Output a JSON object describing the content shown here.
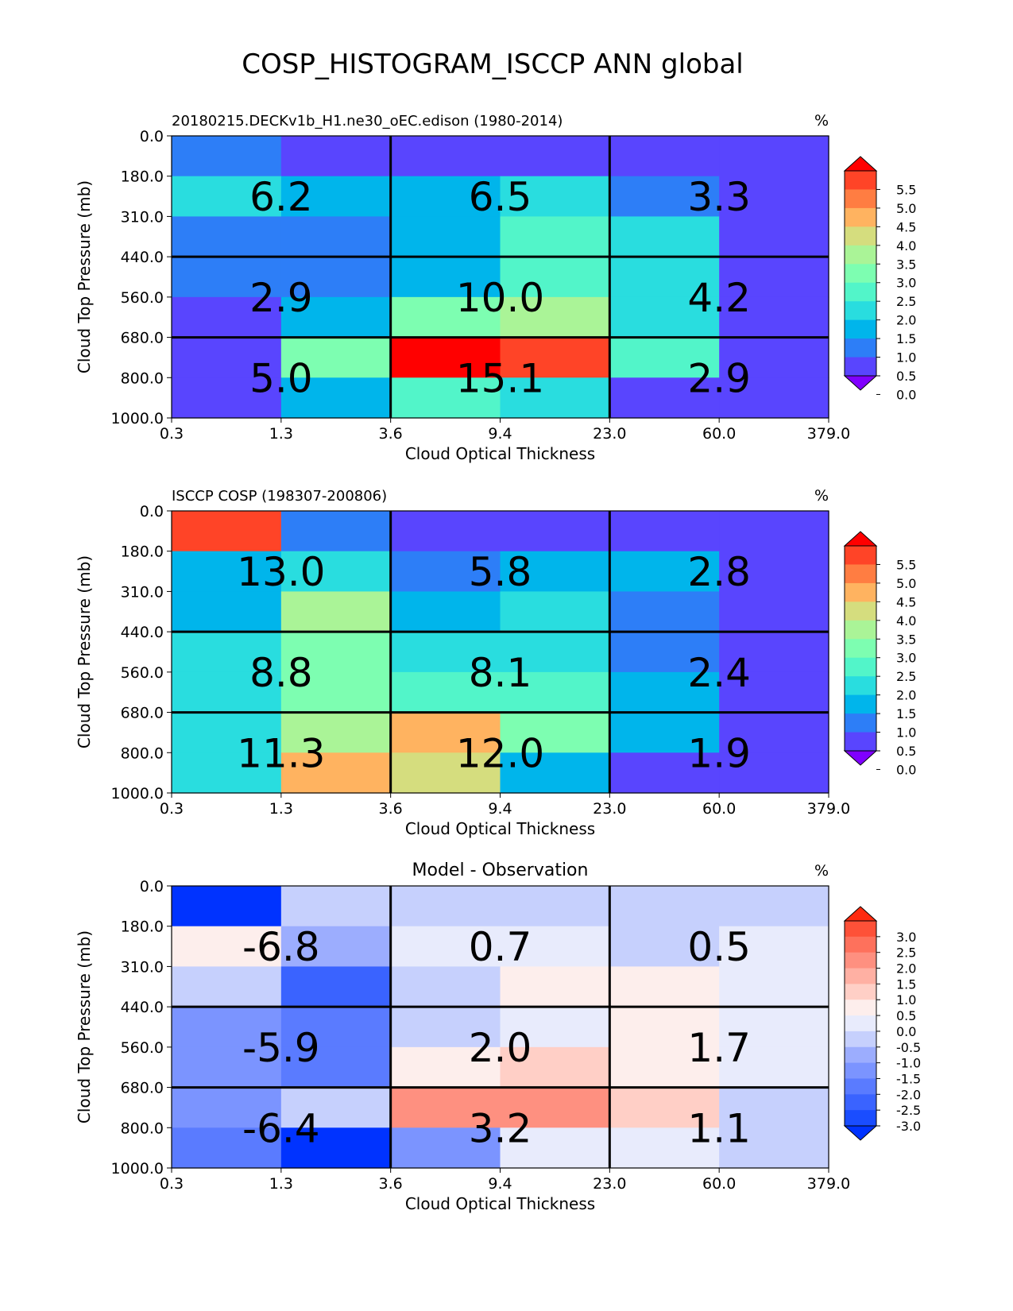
{
  "title": "COSP_HISTOGRAM_ISCCP ANN global",
  "colors": {
    "grid_line": "#000000",
    "background": "#ffffff",
    "seq_palette": [
      "#8000ff",
      "#5945fe",
      "#2d7ef7",
      "#00b5eb",
      "#29dddf",
      "#52f5c9",
      "#7dfeb1",
      "#aaf497",
      "#d5dd7e",
      "#ffb360",
      "#ff7d42",
      "#ff4427",
      "#ff0000"
    ],
    "div_palette": [
      "#0033ff",
      "#1a4dff",
      "#3a63ff",
      "#5a7bff",
      "#7b94ff",
      "#9cadfe",
      "#c6d0fd",
      "#e8ebfc",
      "#fdeeec",
      "#ffcfc6",
      "#ffb0a3",
      "#fe9080",
      "#fe715c",
      "#fe5138",
      "#ff2a10"
    ]
  },
  "chart_data": [
    {
      "type": "heatmap",
      "title": "20180215.DECKv1b_H1.ne30_oEC.edison (1980-2014)",
      "units": "%",
      "xlabel": "Cloud Optical Thickness",
      "ylabel": "Cloud Top Pressure (mb)",
      "x_ticks": [
        "0.3",
        "1.3",
        "3.6",
        "9.4",
        "23.0",
        "60.0",
        "379.0"
      ],
      "y_ticks": [
        "0.0",
        "180.0",
        "310.0",
        "440.0",
        "560.0",
        "680.0",
        "800.0",
        "1000.0"
      ],
      "colorbar_ticks": [
        "5.5",
        "5.0",
        "4.5",
        "4.0",
        "3.5",
        "3.0",
        "2.5",
        "2.0",
        "1.5",
        "1.0",
        "0.5",
        "0.0"
      ],
      "cell_values": [
        [
          0.7,
          0.3,
          0.3,
          0.3,
          0.3,
          0.3
        ],
        [
          1.8,
          1.3,
          1.3,
          1.8,
          0.7,
          0.3
        ],
        [
          0.7,
          0.7,
          1.3,
          2.3,
          1.8,
          0.3
        ],
        [
          0.7,
          0.7,
          1.3,
          2.3,
          1.8,
          0.3
        ],
        [
          0.3,
          1.3,
          2.8,
          3.2,
          1.8,
          0.3
        ],
        [
          0.3,
          2.8,
          5.6,
          5.2,
          2.3,
          0.3
        ],
        [
          0.3,
          1.3,
          2.3,
          1.8,
          0.3,
          0.3
        ]
      ],
      "group_labels": [
        [
          "6.2",
          "6.5",
          "3.3"
        ],
        [
          "2.9",
          "10.0",
          "4.2"
        ],
        [
          "5.0",
          "15.1",
          "2.9"
        ]
      ]
    },
    {
      "type": "heatmap",
      "title": "ISCCP COSP (198307-200806)",
      "units": "%",
      "xlabel": "Cloud Optical Thickness",
      "ylabel": "Cloud Top Pressure (mb)",
      "x_ticks": [
        "0.3",
        "1.3",
        "3.6",
        "9.4",
        "23.0",
        "60.0",
        "379.0"
      ],
      "y_ticks": [
        "0.0",
        "180.0",
        "310.0",
        "440.0",
        "560.0",
        "680.0",
        "800.0",
        "1000.0"
      ],
      "colorbar_ticks": [
        "5.5",
        "5.0",
        "4.5",
        "4.0",
        "3.5",
        "3.0",
        "2.5",
        "2.0",
        "1.5",
        "1.0",
        "0.5",
        "0.0"
      ],
      "cell_values": [
        [
          5.2,
          0.7,
          0.3,
          0.3,
          0.3,
          0.3
        ],
        [
          1.3,
          1.8,
          0.7,
          1.3,
          1.3,
          0.3
        ],
        [
          1.3,
          3.2,
          1.3,
          1.8,
          0.7,
          0.3
        ],
        [
          1.8,
          2.8,
          1.8,
          1.8,
          0.7,
          0.3
        ],
        [
          1.8,
          2.8,
          2.3,
          2.3,
          1.3,
          0.3
        ],
        [
          1.8,
          3.2,
          4.3,
          2.8,
          1.3,
          0.3
        ],
        [
          1.8,
          4.3,
          3.7,
          1.3,
          0.3,
          0.3
        ]
      ],
      "group_labels": [
        [
          "13.0",
          "5.8",
          "2.8"
        ],
        [
          "8.8",
          "8.1",
          "2.4"
        ],
        [
          "11.3",
          "12.0",
          "1.9"
        ]
      ]
    },
    {
      "type": "heatmap",
      "title": "Model - Observation",
      "units": "%",
      "xlabel": "Cloud Optical Thickness",
      "ylabel": "Cloud Top Pressure (mb)",
      "x_ticks": [
        "0.3",
        "1.3",
        "3.6",
        "9.4",
        "23.0",
        "60.0",
        "379.0"
      ],
      "y_ticks": [
        "0.0",
        "180.0",
        "310.0",
        "440.0",
        "560.0",
        "680.0",
        "800.0",
        "1000.0"
      ],
      "colorbar_ticks": [
        "3.0",
        "2.5",
        "2.0",
        "1.5",
        "1.0",
        "0.5",
        "0.0",
        "-0.5",
        "-1.0",
        "-1.5",
        "-2.0",
        "-2.5",
        "-3.0"
      ],
      "cell_values": [
        [
          -3.2,
          -0.2,
          -0.2,
          -0.2,
          -0.2,
          -0.2
        ],
        [
          0.7,
          -0.7,
          0.2,
          0.2,
          -0.2,
          0.2
        ],
        [
          -0.2,
          -2.2,
          -0.2,
          0.7,
          0.7,
          0.2
        ],
        [
          -1.2,
          -1.7,
          -0.2,
          0.2,
          0.7,
          0.2
        ],
        [
          -1.2,
          -1.7,
          0.7,
          1.2,
          0.7,
          0.2
        ],
        [
          -1.2,
          -0.2,
          2.2,
          2.2,
          1.2,
          -0.2
        ],
        [
          -1.7,
          -3.2,
          -1.2,
          0.2,
          0.2,
          -0.2
        ]
      ],
      "group_labels": [
        [
          "-6.8",
          "0.7",
          "0.5"
        ],
        [
          "-5.9",
          "2.0",
          "1.7"
        ],
        [
          "-6.4",
          "3.2",
          "1.1"
        ]
      ]
    }
  ]
}
